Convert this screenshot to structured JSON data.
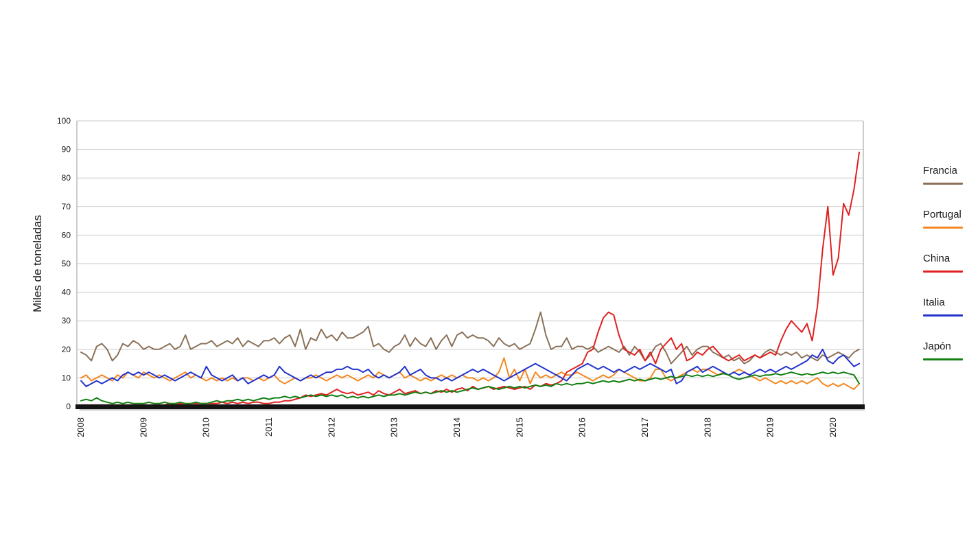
{
  "chart_data": {
    "type": "line",
    "title": "",
    "ylabel": "Miles de toneladas",
    "xlabel": "",
    "ylim": [
      0,
      100
    ],
    "y_tick_step": 10,
    "grid": true,
    "legend_position": "right",
    "x_unit": "month",
    "x_years": [
      2008,
      2009,
      2010,
      2011,
      2012,
      2013,
      2014,
      2015,
      2016,
      2017,
      2018,
      2019,
      2020
    ],
    "series": [
      {
        "name": "Francia",
        "color": "#8a7158",
        "values": [
          19,
          18,
          16,
          21,
          22,
          20,
          16,
          18,
          22,
          21,
          23,
          22,
          20,
          21,
          20,
          20,
          21,
          22,
          20,
          21,
          25,
          20,
          21,
          22,
          22,
          23,
          21,
          22,
          23,
          22,
          24,
          21,
          23,
          22,
          21,
          23,
          23,
          24,
          22,
          24,
          25,
          21,
          27,
          20,
          24,
          23,
          27,
          24,
          25,
          23,
          26,
          24,
          24,
          25,
          26,
          28,
          21,
          22,
          20,
          19,
          21,
          22,
          25,
          21,
          24,
          22,
          21,
          24,
          20,
          23,
          25,
          21,
          25,
          26,
          24,
          25,
          24,
          24,
          23,
          21,
          24,
          22,
          21,
          22,
          20,
          21,
          22,
          27,
          33,
          25,
          20,
          21,
          21,
          24,
          20,
          21,
          21,
          20,
          21,
          19,
          20,
          21,
          20,
          19,
          21,
          18,
          21,
          19,
          16,
          18,
          21,
          22,
          19,
          15,
          17,
          19,
          21,
          18,
          20,
          21,
          21,
          19,
          18,
          17,
          18,
          16,
          17,
          15,
          16,
          18,
          17,
          19,
          20,
          19,
          18,
          19,
          18,
          19,
          17,
          18,
          17,
          16,
          18,
          17,
          18,
          19,
          18,
          17,
          19,
          20
        ]
      },
      {
        "name": "Portugal",
        "color": "#f5871f",
        "values": [
          10,
          11,
          9,
          10,
          11,
          10,
          9,
          11,
          10,
          12,
          11,
          10,
          12,
          11,
          10,
          11,
          10,
          9,
          10,
          11,
          12,
          10,
          11,
          10,
          9,
          10,
          9,
          10,
          9,
          10,
          9,
          10,
          10,
          9,
          10,
          9,
          10,
          11,
          9,
          8,
          9,
          10,
          9,
          10,
          10,
          11,
          10,
          9,
          10,
          11,
          10,
          11,
          10,
          9,
          10,
          11,
          10,
          12,
          11,
          10,
          11,
          12,
          10,
          11,
          10,
          9,
          10,
          9,
          10,
          11,
          10,
          11,
          10,
          11,
          10,
          10,
          9,
          10,
          9,
          10,
          12,
          17,
          10,
          13,
          9,
          13,
          8,
          12,
          10,
          11,
          10,
          11,
          12,
          11,
          11,
          12,
          11,
          10,
          9,
          10,
          11,
          10,
          11,
          13,
          12,
          11,
          10,
          9,
          9,
          10,
          13,
          13,
          10,
          9,
          10,
          11,
          12,
          13,
          12,
          13,
          13,
          12,
          11,
          12,
          11,
          12,
          13,
          12,
          11,
          10,
          9,
          10,
          9,
          8,
          9,
          8,
          9,
          8,
          9,
          8,
          9,
          10,
          8,
          7,
          8,
          7,
          8,
          7,
          6,
          8
        ]
      },
      {
        "name": "China",
        "color": "#e02020",
        "values": [
          0.5,
          0.5,
          0.5,
          0.5,
          0.5,
          0.5,
          0.5,
          0.5,
          0.5,
          0.5,
          0.5,
          0.5,
          0.5,
          0.5,
          0.5,
          0.5,
          0.5,
          1,
          0.5,
          1,
          0.5,
          1,
          1,
          1,
          1,
          1,
          1,
          1.5,
          1,
          1.5,
          1,
          1.5,
          1,
          1.5,
          1.5,
          1,
          1,
          1.5,
          1.5,
          2,
          2,
          2.5,
          3,
          4,
          3.5,
          4,
          4.5,
          4,
          5,
          6,
          5,
          4.5,
          5,
          4,
          4.5,
          5,
          4,
          5.5,
          4.5,
          4,
          5,
          6,
          4.5,
          5,
          5.5,
          4.5,
          5,
          4.5,
          5.5,
          5,
          6,
          5,
          6,
          6.5,
          5.5,
          7,
          6,
          6.5,
          7,
          6,
          6.5,
          7,
          6.5,
          6,
          6.5,
          7,
          6,
          7.5,
          7,
          8,
          7.5,
          8,
          9,
          12,
          13,
          14,
          15,
          19,
          20,
          26,
          31,
          33,
          32,
          25,
          20,
          19,
          18,
          20,
          16,
          19,
          15,
          20,
          22,
          24,
          20,
          22,
          16,
          17,
          19,
          18,
          20,
          21,
          19,
          17,
          16,
          17,
          18,
          16,
          17,
          18,
          17,
          18,
          19,
          18,
          23,
          27,
          30,
          28,
          26,
          29,
          23,
          35,
          55,
          70,
          46,
          52,
          71,
          67,
          76,
          89
        ]
      },
      {
        "name": "Italia",
        "color": "#2233cc",
        "values": [
          9,
          7,
          8,
          9,
          8,
          9,
          10,
          9,
          11,
          12,
          11,
          12,
          11,
          12,
          11,
          10,
          11,
          10,
          9,
          10,
          11,
          12,
          11,
          10,
          14,
          11,
          10,
          9,
          10,
          11,
          9,
          10,
          8,
          9,
          10,
          11,
          10,
          11,
          14,
          12,
          11,
          10,
          9,
          10,
          11,
          10,
          11,
          12,
          12,
          13,
          13,
          14,
          13,
          13,
          12,
          13,
          11,
          10,
          11,
          10,
          11,
          12,
          14,
          11,
          12,
          13,
          11,
          10,
          10,
          9,
          10,
          9,
          10,
          11,
          12,
          13,
          12,
          13,
          12,
          11,
          10,
          9,
          10,
          11,
          12,
          13,
          14,
          15,
          14,
          13,
          12,
          11,
          10,
          9,
          11,
          13,
          14,
          15,
          14,
          13,
          14,
          13,
          12,
          13,
          12,
          13,
          14,
          13,
          14,
          15,
          14,
          13,
          12,
          13,
          8,
          9,
          12,
          13,
          14,
          12,
          13,
          14,
          13,
          12,
          11,
          12,
          11,
          12,
          11,
          12,
          13,
          12,
          13,
          12,
          13,
          14,
          13,
          14,
          15,
          16,
          18,
          17,
          20,
          16,
          15,
          17,
          18,
          16,
          14,
          15
        ]
      },
      {
        "name": "Japón",
        "color": "#148014",
        "values": [
          2,
          2.5,
          2,
          3,
          2,
          1.5,
          1,
          1.5,
          1,
          1.5,
          1,
          1,
          1,
          1.5,
          1,
          1,
          1.5,
          1,
          1,
          1.5,
          1,
          1,
          1.5,
          1,
          1,
          1.5,
          2,
          1.5,
          2,
          2,
          2.5,
          2,
          2.5,
          2,
          2.5,
          3,
          2.5,
          3,
          3,
          3.5,
          3,
          3.5,
          3,
          3.5,
          4,
          3.5,
          4,
          3.5,
          4,
          3.5,
          4,
          3,
          3.5,
          3,
          3.5,
          3,
          3.5,
          4,
          3.5,
          4,
          4,
          4.5,
          4,
          4.5,
          5,
          4.5,
          5,
          4.5,
          5,
          5.5,
          5,
          5.5,
          5,
          5.5,
          6,
          6.5,
          6,
          6.5,
          7,
          6.5,
          6,
          6.5,
          7,
          6.5,
          7,
          6.5,
          7,
          7.5,
          7,
          7.5,
          7,
          8,
          7.5,
          8,
          7.5,
          8,
          8,
          8.5,
          8,
          8.5,
          9,
          8.5,
          9,
          8.5,
          9,
          9.5,
          9,
          9.5,
          9,
          9.5,
          10,
          9.5,
          10,
          10.5,
          10,
          10.5,
          11,
          10.5,
          11,
          10.5,
          11,
          10.5,
          11,
          11.5,
          11,
          10,
          9.5,
          10,
          10.5,
          11,
          10.5,
          11,
          11,
          11.5,
          11,
          11.5,
          12,
          11.5,
          11,
          11.5,
          11,
          11.5,
          12,
          11.5,
          12,
          11.5,
          12,
          11.5,
          11,
          8
        ]
      }
    ],
    "colors": {
      "grid": "#c9c9c9",
      "plot_border": "#9a9a9a",
      "baseline_bar": "#141414",
      "tick_text": "#1a1a1a"
    }
  }
}
